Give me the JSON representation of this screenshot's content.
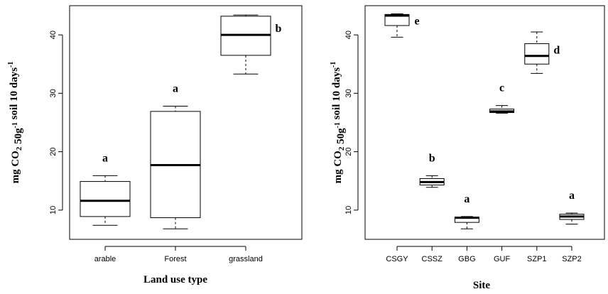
{
  "chart_data": [
    {
      "type": "box",
      "xlabel": "Land use type",
      "ylabel": {
        "parts": [
          {
            "t": "mg CO"
          },
          {
            "t": "2",
            "s": "sub"
          },
          {
            "t": " 50g"
          },
          {
            "t": "-1",
            "s": "sup"
          },
          {
            "t": " soil 10 days"
          },
          {
            "t": "-1",
            "s": "sup"
          }
        ]
      },
      "ylim": [
        5,
        45
      ],
      "yticks": [
        10,
        20,
        30,
        40
      ],
      "categories": [
        "arable",
        "Forest",
        "grassland"
      ],
      "boxes": [
        {
          "min": 7.4,
          "q1": 8.9,
          "median": 11.6,
          "q3": 14.9,
          "max": 15.9
        },
        {
          "min": 6.8,
          "q1": 8.7,
          "median": 17.7,
          "q3": 26.9,
          "max": 27.8
        },
        {
          "min": 33.3,
          "q1": 36.5,
          "median": 40.0,
          "q3": 43.2,
          "max": 43.4
        }
      ],
      "letters": [
        "a",
        "a",
        "b"
      ]
    },
    {
      "type": "box",
      "xlabel": "Site",
      "ylabel": {
        "parts": [
          {
            "t": "mg CO"
          },
          {
            "t": "2",
            "s": "sub"
          },
          {
            "t": " 50g"
          },
          {
            "t": "-1",
            "s": "sup"
          },
          {
            "t": " soil 10 days"
          },
          {
            "t": "-1",
            "s": "sup"
          }
        ]
      },
      "ylim": [
        5,
        45
      ],
      "yticks": [
        10,
        20,
        30,
        40
      ],
      "categories": [
        "CSGY",
        "CSSZ",
        "GBG",
        "GUF",
        "SZP1",
        "SZP2"
      ],
      "boxes": [
        {
          "min": 39.6,
          "q1": 41.6,
          "median": 43.3,
          "q3": 43.5,
          "max": 43.6
        },
        {
          "min": 13.9,
          "q1": 14.3,
          "median": 14.8,
          "q3": 15.4,
          "max": 15.9
        },
        {
          "min": 6.8,
          "q1": 7.9,
          "median": 8.7,
          "q3": 8.8,
          "max": 8.9
        },
        {
          "min": 26.6,
          "q1": 26.7,
          "median": 26.9,
          "q3": 27.3,
          "max": 27.9
        },
        {
          "min": 33.4,
          "q1": 35.0,
          "median": 36.4,
          "q3": 38.5,
          "max": 40.5
        },
        {
          "min": 7.6,
          "q1": 8.4,
          "median": 8.9,
          "q3": 9.3,
          "max": 9.5
        }
      ],
      "letters": [
        "e",
        "b",
        "a",
        "c",
        "d",
        "a"
      ]
    }
  ]
}
